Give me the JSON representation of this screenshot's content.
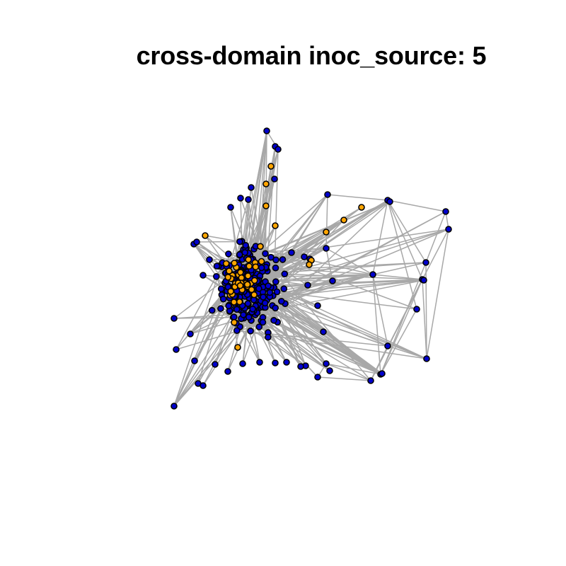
{
  "title": "cross-domain inoc_source: 5",
  "colors": {
    "background": "#ffffff",
    "edge": "#a8a8a8",
    "node_default": "#0000cc",
    "node_highlight": "#ffa500",
    "node_border": "#000000"
  }
}
